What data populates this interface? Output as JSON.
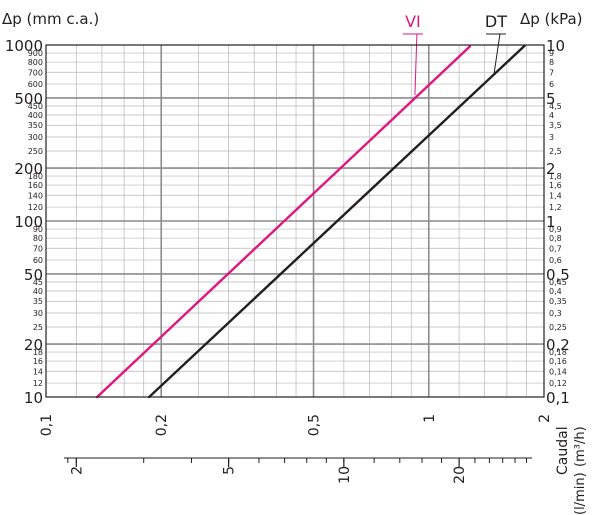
{
  "chart_data": {
    "type": "line",
    "scale": "log-log",
    "left_axis_label": "Δp (mm c.a.)",
    "right_axis_label": "Δp (kPa)",
    "bottom_axis_label": "Caudal",
    "bottom_axis_units_m3h": "(m³/h)",
    "bottom_axis_units_lmin": "(l/min)",
    "grid": true,
    "ylim_mmca": [
      10,
      1000
    ],
    "xlim_m3h": [
      0.1,
      2
    ],
    "y_left_major_ticks": [
      {
        "v": 10,
        "label": "10"
      },
      {
        "v": 20,
        "label": "20"
      },
      {
        "v": 50,
        "label": "50"
      },
      {
        "v": 100,
        "label": "100"
      },
      {
        "v": 200,
        "label": "200"
      },
      {
        "v": 500,
        "label": "500"
      },
      {
        "v": 1000,
        "label": "1000"
      }
    ],
    "y_left_minor_ticks": [
      {
        "v": 12,
        "label": "12"
      },
      {
        "v": 14,
        "label": "14"
      },
      {
        "v": 16,
        "label": "16"
      },
      {
        "v": 18,
        "label": "18"
      },
      {
        "v": 25,
        "label": "25"
      },
      {
        "v": 30,
        "label": "30"
      },
      {
        "v": 35,
        "label": "35"
      },
      {
        "v": 40,
        "label": "40"
      },
      {
        "v": 45,
        "label": "45"
      },
      {
        "v": 60,
        "label": "60"
      },
      {
        "v": 70,
        "label": "70"
      },
      {
        "v": 80,
        "label": "80"
      },
      {
        "v": 90,
        "label": "90"
      },
      {
        "v": 120,
        "label": "120"
      },
      {
        "v": 140,
        "label": "140"
      },
      {
        "v": 160,
        "label": "160"
      },
      {
        "v": 180,
        "label": "180"
      },
      {
        "v": 250,
        "label": "250"
      },
      {
        "v": 300,
        "label": "300"
      },
      {
        "v": 350,
        "label": "350"
      },
      {
        "v": 400,
        "label": "400"
      },
      {
        "v": 450,
        "label": "450"
      },
      {
        "v": 600,
        "label": "600"
      },
      {
        "v": 700,
        "label": "700"
      },
      {
        "v": 800,
        "label": "800"
      },
      {
        "v": 900,
        "label": "900"
      }
    ],
    "y_right_major_ticks": [
      {
        "v": 10,
        "label": "0,1"
      },
      {
        "v": 20,
        "label": "0,2"
      },
      {
        "v": 50,
        "label": "0,5"
      },
      {
        "v": 100,
        "label": "1"
      },
      {
        "v": 200,
        "label": "2"
      },
      {
        "v": 500,
        "label": "5"
      },
      {
        "v": 1000,
        "label": "10"
      }
    ],
    "y_right_minor_ticks": [
      {
        "v": 12,
        "label": "0,12"
      },
      {
        "v": 14,
        "label": "0,14"
      },
      {
        "v": 16,
        "label": "0,16"
      },
      {
        "v": 18,
        "label": "0,18"
      },
      {
        "v": 25,
        "label": "0,25"
      },
      {
        "v": 30,
        "label": "0,3"
      },
      {
        "v": 35,
        "label": "0,35"
      },
      {
        "v": 40,
        "label": "0,4"
      },
      {
        "v": 45,
        "label": "0,45"
      },
      {
        "v": 60,
        "label": "0,6"
      },
      {
        "v": 70,
        "label": "0,7"
      },
      {
        "v": 80,
        "label": "0,8"
      },
      {
        "v": 90,
        "label": "0,9"
      },
      {
        "v": 120,
        "label": "1,2"
      },
      {
        "v": 140,
        "label": "1,4"
      },
      {
        "v": 160,
        "label": "1,6"
      },
      {
        "v": 180,
        "label": "1,8"
      },
      {
        "v": 250,
        "label": "2,5"
      },
      {
        "v": 300,
        "label": "3"
      },
      {
        "v": 350,
        "label": "3,5"
      },
      {
        "v": 400,
        "label": "4"
      },
      {
        "v": 450,
        "label": "4,5"
      },
      {
        "v": 600,
        "label": "6"
      },
      {
        "v": 700,
        "label": "7"
      },
      {
        "v": 800,
        "label": "8"
      },
      {
        "v": 900,
        "label": "9"
      }
    ],
    "x_m3h_ticks": [
      {
        "v": 0.1,
        "label": "0,1"
      },
      {
        "v": 0.2,
        "label": "0,2"
      },
      {
        "v": 0.5,
        "label": "0,5"
      },
      {
        "v": 1,
        "label": "1"
      },
      {
        "v": 2,
        "label": "2"
      }
    ],
    "x_lmin_ticks": [
      {
        "v": 2,
        "label": "2"
      },
      {
        "v": 5,
        "label": "5"
      },
      {
        "v": 10,
        "label": "10"
      },
      {
        "v": 20,
        "label": "20"
      }
    ],
    "series": [
      {
        "name": "VI",
        "color": "#e0157f",
        "x_m3h": [
          0.136,
          1.28
        ],
        "y_mmca": [
          10,
          980
        ]
      },
      {
        "name": "DT",
        "color": "#231f20",
        "x_m3h": [
          0.186,
          1.78
        ],
        "y_mmca": [
          10,
          990
        ]
      }
    ],
    "series_labels": [
      {
        "name": "VI",
        "color": "#e0157f",
        "anchor_x_m3h": 0.92,
        "anchor_y_mmca": 520
      },
      {
        "name": "DT",
        "color": "#231f20",
        "anchor_x_m3h": 1.48,
        "anchor_y_mmca": 680
      }
    ]
  }
}
